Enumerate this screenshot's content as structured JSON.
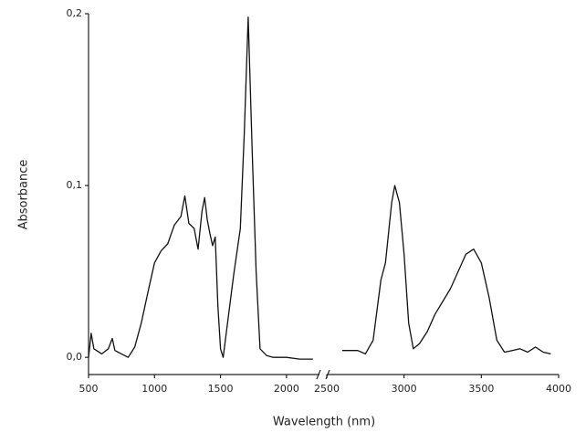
{
  "chart_data": {
    "type": "line",
    "x_label": "Wavelength (nm)",
    "y_label": "Absorbance",
    "xlim": [
      500,
      4000
    ],
    "x_break": [
      2250,
      2500
    ],
    "xticks": [
      500,
      1000,
      1500,
      2000,
      2500,
      3000,
      3500,
      4000
    ],
    "ylim": [
      -0.01,
      0.2
    ],
    "yticks": [
      {
        "value": 0.0,
        "label": "0,0"
      },
      {
        "value": 0.1,
        "label": "0,1"
      },
      {
        "value": 0.2,
        "label": "0,2"
      }
    ],
    "series": [
      {
        "color": "#111111",
        "x": [
          500,
          520,
          540,
          600,
          650,
          680,
          700,
          750,
          800,
          850,
          900,
          950,
          1000,
          1050,
          1100,
          1150,
          1200,
          1230,
          1260,
          1300,
          1330,
          1360,
          1380,
          1400,
          1420,
          1440,
          1460,
          1480,
          1500,
          1520,
          1550,
          1600,
          1650,
          1680,
          1710,
          1740,
          1770,
          1800,
          1850,
          1900,
          2000,
          2100,
          2200,
          2250,
          2600,
          2700,
          2750,
          2800,
          2850,
          2880,
          2920,
          2940,
          2970,
          3000,
          3030,
          3060,
          3100,
          3150,
          3200,
          3300,
          3400,
          3450,
          3500,
          3550,
          3600,
          3650,
          3700,
          3750,
          3800,
          3850,
          3900,
          3950
        ],
        "values": [
          0.0,
          0.014,
          0.005,
          0.002,
          0.005,
          0.011,
          0.004,
          0.002,
          0.0,
          0.006,
          0.02,
          0.038,
          0.055,
          0.062,
          0.066,
          0.077,
          0.082,
          0.094,
          0.078,
          0.075,
          0.063,
          0.085,
          0.093,
          0.08,
          0.072,
          0.065,
          0.07,
          0.03,
          0.005,
          0.0,
          0.018,
          0.048,
          0.075,
          0.13,
          0.198,
          0.12,
          0.05,
          0.005,
          0.001,
          0.0,
          0.0,
          -0.001,
          -0.001,
          null,
          0.004,
          0.004,
          0.002,
          0.01,
          0.045,
          0.055,
          0.09,
          0.1,
          0.09,
          0.06,
          0.02,
          0.005,
          0.008,
          0.015,
          0.025,
          0.04,
          0.06,
          0.063,
          0.055,
          0.035,
          0.01,
          0.003,
          0.004,
          0.005,
          0.003,
          0.006,
          0.003,
          0.002
        ]
      }
    ]
  }
}
